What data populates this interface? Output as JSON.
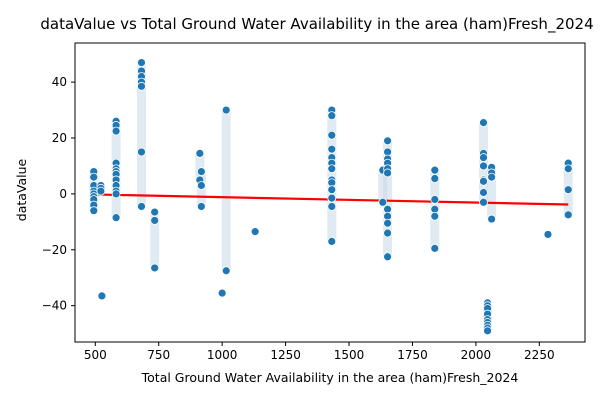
{
  "chart_data": {
    "type": "scatter",
    "title": "dataValue vs Total Ground Water Availability in the area (ham)Fresh_2024",
    "xlabel": "Total Ground Water Availability in the area (ham)Fresh_2024",
    "ylabel": "dataValue",
    "xlim": [
      420,
      2430
    ],
    "ylim": [
      -53,
      54
    ],
    "xticks": [
      500,
      750,
      1000,
      1250,
      1500,
      1750,
      2000,
      2250
    ],
    "yticks": [
      -40,
      -20,
      0,
      20,
      40
    ],
    "grid": false,
    "colors": {
      "points": "#1f77b4",
      "trend": "#ff0000",
      "faint": "#c6d8ea"
    },
    "points": [
      [
        494,
        8
      ],
      [
        494,
        6
      ],
      [
        494,
        3
      ],
      [
        494,
        1
      ],
      [
        494,
        0
      ],
      [
        494,
        -1
      ],
      [
        494,
        -2
      ],
      [
        494,
        -4
      ],
      [
        494,
        -6
      ],
      [
        522,
        3
      ],
      [
        522,
        2
      ],
      [
        522,
        1
      ],
      [
        526,
        -36.5
      ],
      [
        582,
        26
      ],
      [
        582,
        24.5
      ],
      [
        582,
        22.5
      ],
      [
        582,
        11
      ],
      [
        582,
        9
      ],
      [
        582,
        8
      ],
      [
        582,
        7
      ],
      [
        582,
        5
      ],
      [
        582,
        3
      ],
      [
        582,
        1
      ],
      [
        582,
        0
      ],
      [
        582,
        -8.5
      ],
      [
        682,
        47
      ],
      [
        682,
        44
      ],
      [
        682,
        42
      ],
      [
        682,
        40
      ],
      [
        682,
        38.5
      ],
      [
        682,
        15
      ],
      [
        682,
        -4.5
      ],
      [
        734,
        -6.5
      ],
      [
        734,
        -9.5
      ],
      [
        734,
        -26.5
      ],
      [
        912,
        14.5
      ],
      [
        912,
        5
      ],
      [
        918,
        8
      ],
      [
        918,
        3
      ],
      [
        918,
        -4.5
      ],
      [
        1000,
        -35.5
      ],
      [
        1016,
        30
      ],
      [
        1016,
        -27.5
      ],
      [
        1130,
        -13.5
      ],
      [
        1432,
        30
      ],
      [
        1432,
        28
      ],
      [
        1432,
        21
      ],
      [
        1432,
        16
      ],
      [
        1432,
        13
      ],
      [
        1432,
        11
      ],
      [
        1432,
        9
      ],
      [
        1432,
        5
      ],
      [
        1432,
        4
      ],
      [
        1432,
        1.5
      ],
      [
        1432,
        -1.5
      ],
      [
        1432,
        -4.5
      ],
      [
        1432,
        -17
      ],
      [
        1633,
        8.5
      ],
      [
        1633,
        -3
      ],
      [
        1652,
        19
      ],
      [
        1652,
        15
      ],
      [
        1652,
        12.5
      ],
      [
        1652,
        11
      ],
      [
        1652,
        9
      ],
      [
        1652,
        7.5
      ],
      [
        1652,
        -5.5
      ],
      [
        1652,
        -8
      ],
      [
        1652,
        -10.5
      ],
      [
        1652,
        -14
      ],
      [
        1652,
        -22.5
      ],
      [
        1838,
        8.5
      ],
      [
        1838,
        5.5
      ],
      [
        1838,
        -2
      ],
      [
        1838,
        -5.5
      ],
      [
        1838,
        -8
      ],
      [
        1838,
        -19.5
      ],
      [
        2030,
        25.5
      ],
      [
        2030,
        14.5
      ],
      [
        2030,
        13
      ],
      [
        2030,
        10
      ],
      [
        2030,
        5
      ],
      [
        2030,
        4.5
      ],
      [
        2030,
        0.5
      ],
      [
        2030,
        -3
      ],
      [
        2046,
        -39
      ],
      [
        2046,
        -40
      ],
      [
        2046,
        -41
      ],
      [
        2046,
        -43
      ],
      [
        2046,
        -45
      ],
      [
        2046,
        -46
      ],
      [
        2046,
        -47
      ],
      [
        2046,
        -48
      ],
      [
        2046,
        -49
      ],
      [
        2062,
        9.5
      ],
      [
        2062,
        7.5
      ],
      [
        2062,
        6
      ],
      [
        2062,
        -9
      ],
      [
        2284,
        -14.5
      ],
      [
        2364,
        11
      ],
      [
        2364,
        9
      ],
      [
        2364,
        1.5
      ],
      [
        2364,
        -7.5
      ]
    ],
    "trendline": {
      "x": [
        494,
        2364
      ],
      "y": [
        -0.2,
        -3.8
      ]
    }
  }
}
